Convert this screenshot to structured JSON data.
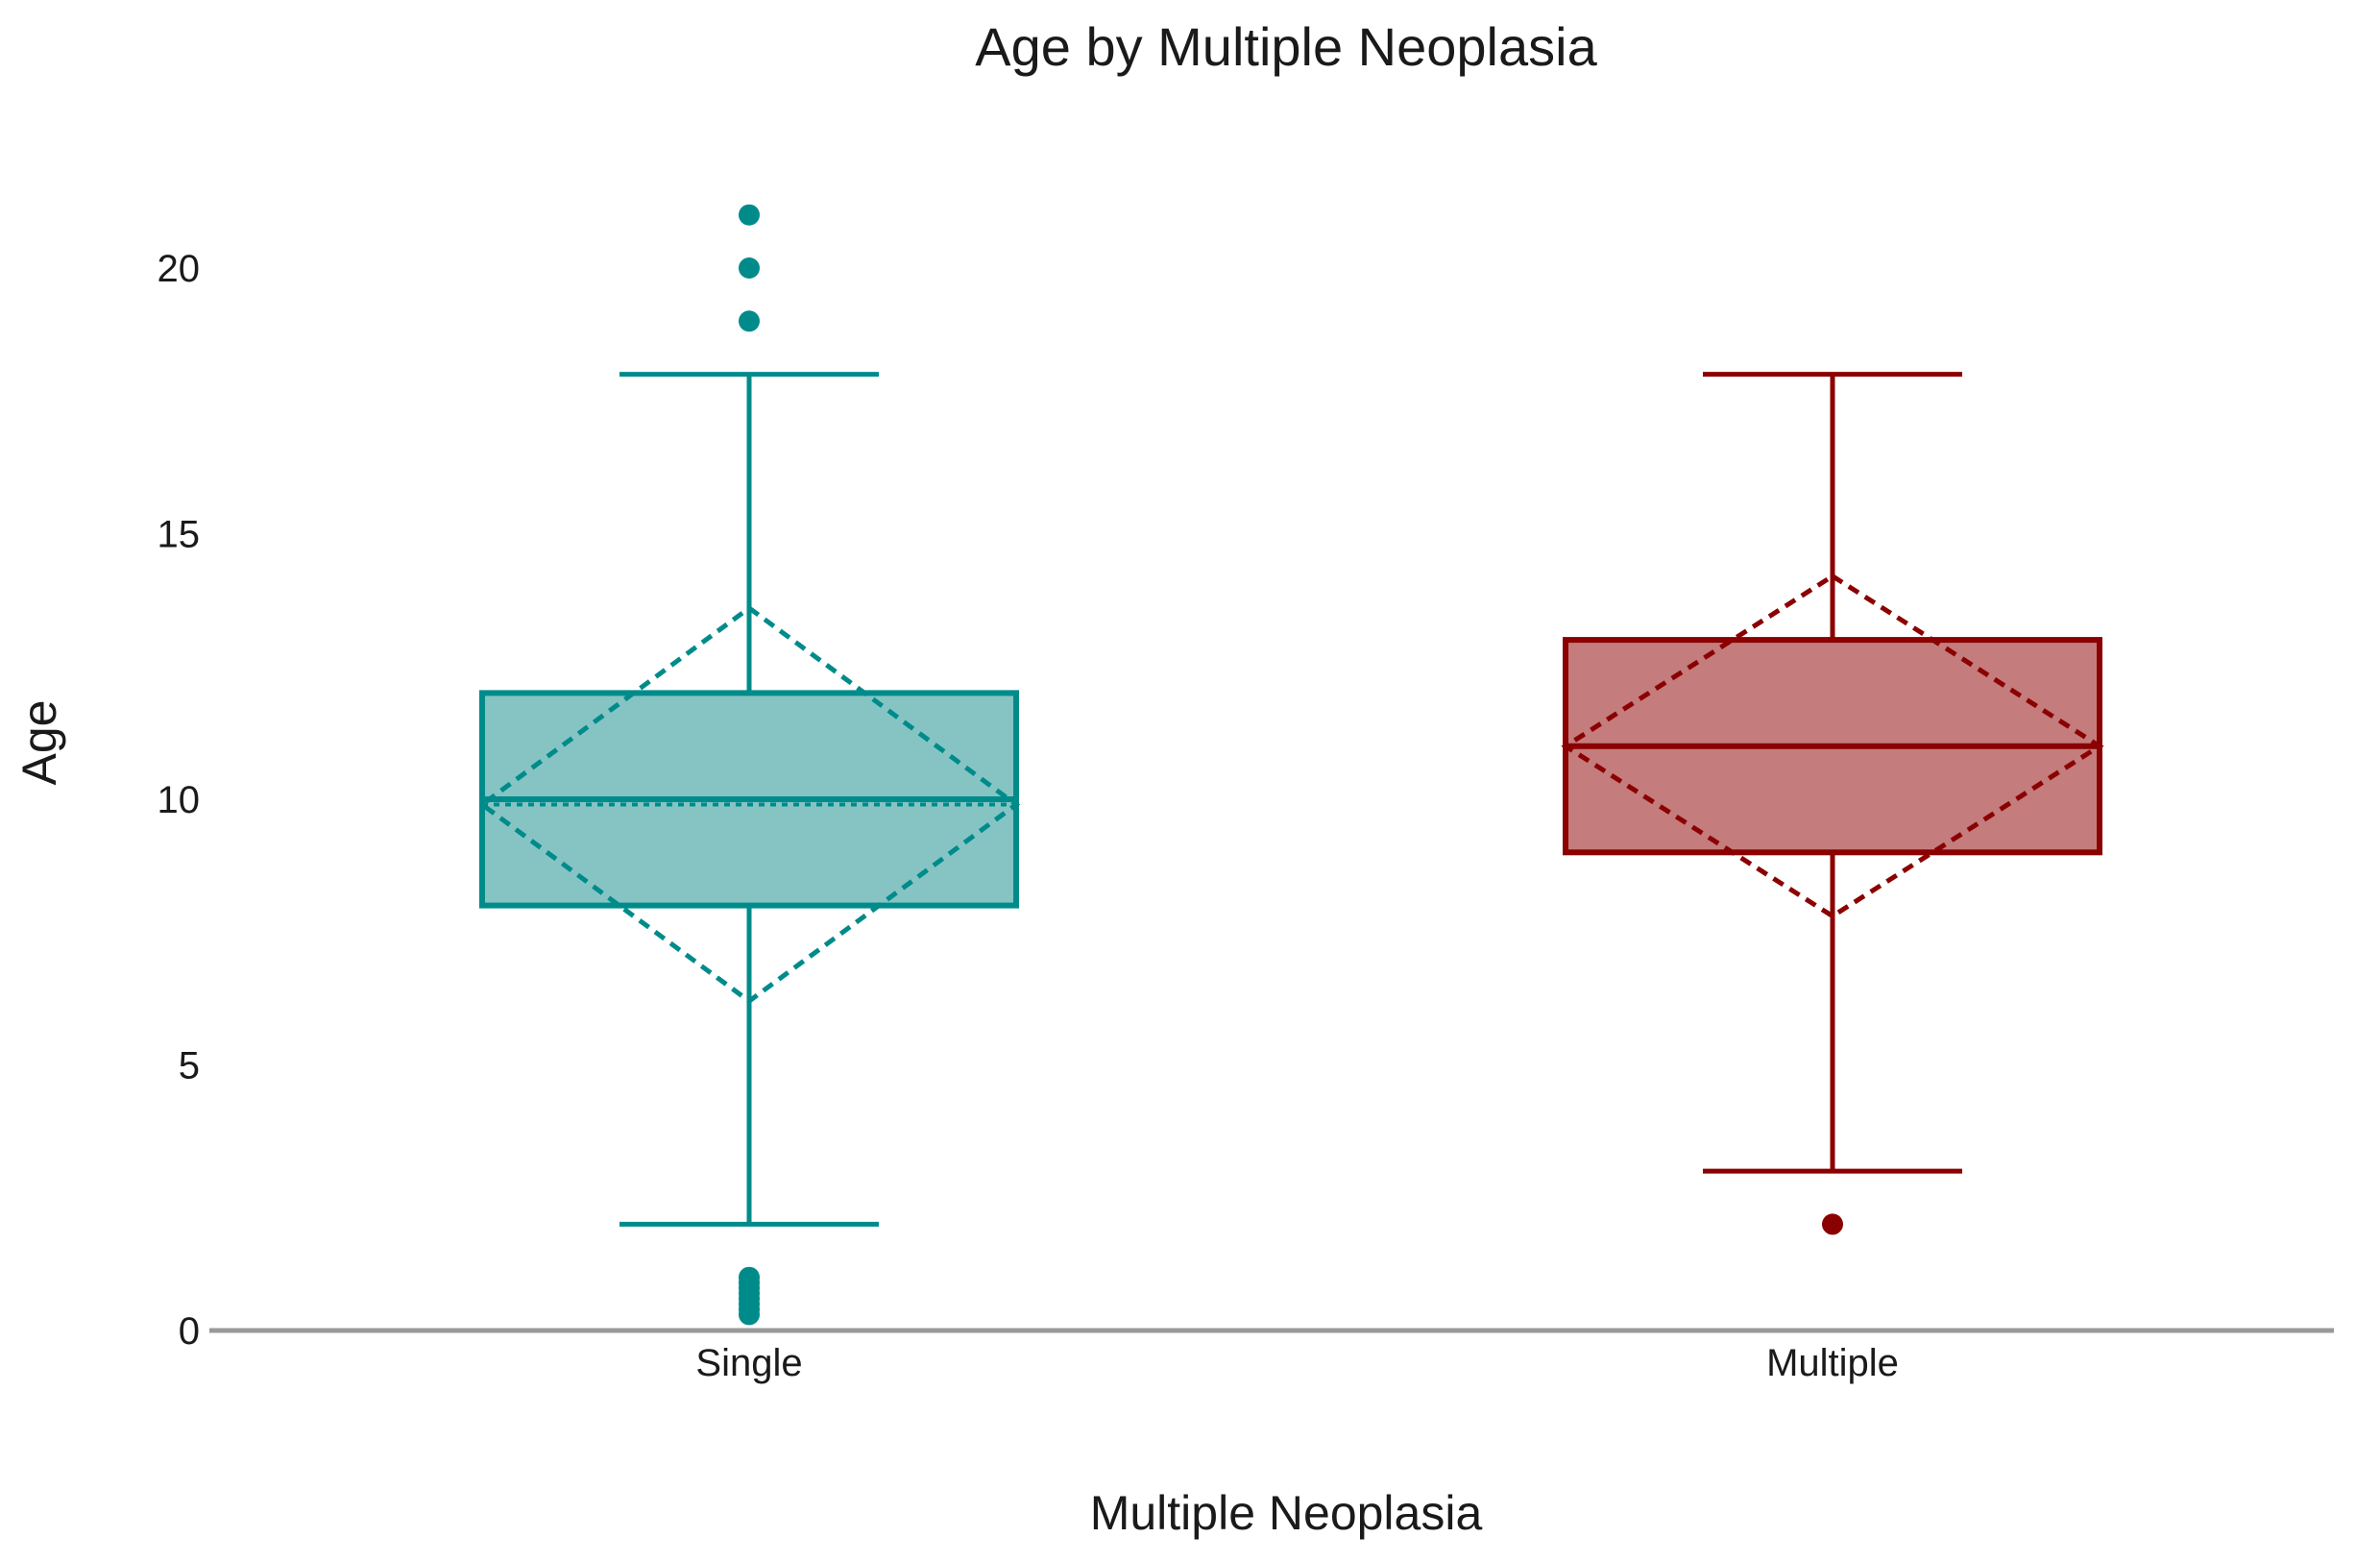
{
  "chart_data": {
    "type": "box",
    "title": "Age by Multiple Neoplasia",
    "xlabel": "Multiple Neoplasia",
    "ylabel": "Age",
    "ylim": [
      0,
      22
    ],
    "yticks": [
      0,
      5,
      10,
      15,
      20
    ],
    "grid": false,
    "legend": "none",
    "categories": [
      "Single",
      "Multiple"
    ],
    "series": [
      {
        "category": "Single",
        "color": "#008b8b",
        "fill": "#86c4c4",
        "whisker_low": 2,
        "q1": 8,
        "median": 10,
        "q3": 12,
        "whisker_high": 18,
        "mean": 9.9,
        "sd_low": 6.2,
        "sd_high": 13.6,
        "outliers": [
          21,
          20,
          19,
          1,
          0.9,
          0.8,
          0.7,
          0.6,
          0.5,
          0.4,
          0.3
        ]
      },
      {
        "category": "Multiple",
        "color": "#8b0000",
        "fill": "#c47c7c",
        "whisker_low": 3,
        "q1": 9,
        "median": 11,
        "q3": 13,
        "whisker_high": 18,
        "mean": 11,
        "sd_low": 7.8,
        "sd_high": 14.2,
        "outliers": [
          2
        ]
      }
    ]
  }
}
